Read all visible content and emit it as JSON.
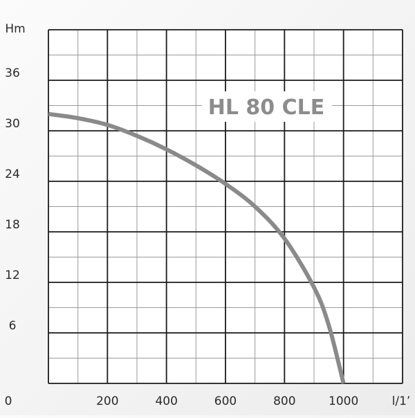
{
  "chart_data": {
    "type": "line",
    "title": "HL 80 CLE",
    "ylabel": "Hm",
    "xlabel": "l/1’",
    "origin_label": "0",
    "x_ticks": [
      {
        "value": 200,
        "label": "200"
      },
      {
        "value": 400,
        "label": "400"
      },
      {
        "value": 600,
        "label": "600"
      },
      {
        "value": 800,
        "label": "800"
      },
      {
        "value": 1000,
        "label": "1000"
      }
    ],
    "y_ticks": [
      {
        "value": 6,
        "label": "6"
      },
      {
        "value": 12,
        "label": "12"
      },
      {
        "value": 18,
        "label": "18"
      },
      {
        "value": 24,
        "label": "24"
      },
      {
        "value": 30,
        "label": "30"
      },
      {
        "value": 36,
        "label": "36"
      }
    ],
    "xlim": [
      0,
      1200
    ],
    "ylim": [
      0,
      42
    ],
    "x_grid_step": 100,
    "y_grid_step": 3,
    "grid": true,
    "series": [
      {
        "color": "#8a8a8a",
        "x": [
          0,
          100,
          200,
          300,
          400,
          500,
          600,
          700,
          800,
          900,
          950,
          1000
        ],
        "y": [
          32.0,
          31.5,
          30.7,
          29.4,
          27.8,
          25.9,
          23.7,
          21.0,
          17.2,
          11.4,
          6.9,
          0
        ]
      }
    ],
    "colors": {
      "grid_major": "#1a1a1a",
      "grid_minor": "#9a9a9a",
      "plot_background": "#ffffff",
      "curve": "#8a8a8a",
      "title": "#8c8c8c"
    }
  }
}
